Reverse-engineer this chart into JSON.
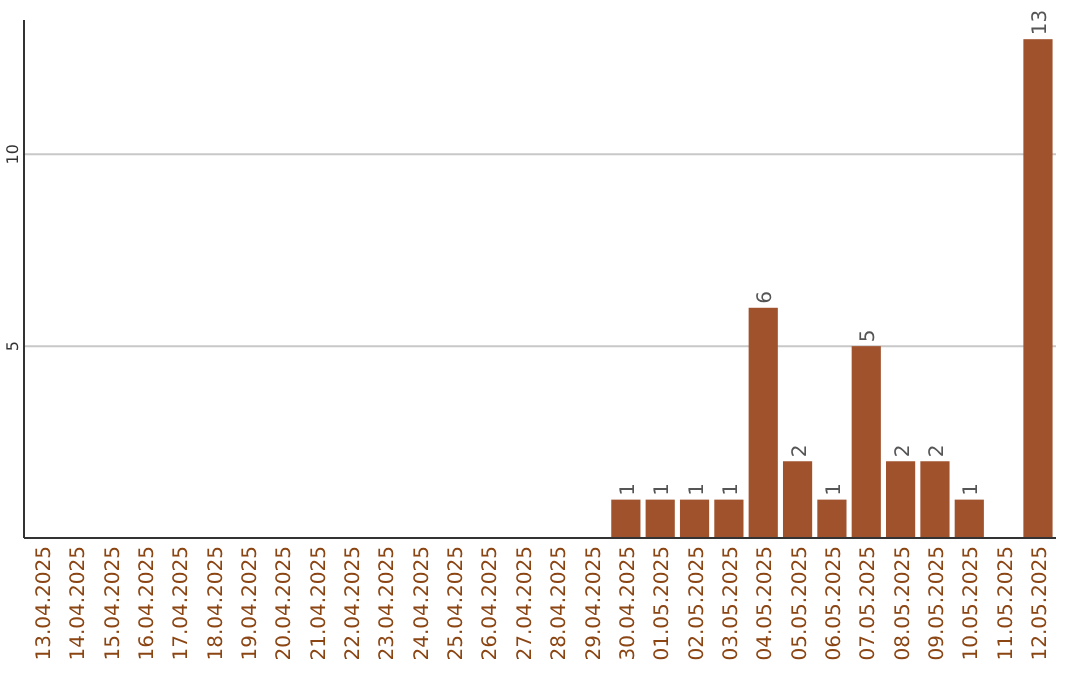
{
  "chart_data": {
    "type": "bar",
    "categories": [
      "13.04.2025",
      "14.04.2025",
      "15.04.2025",
      "16.04.2025",
      "17.04.2025",
      "18.04.2025",
      "19.04.2025",
      "20.04.2025",
      "21.04.2025",
      "22.04.2025",
      "23.04.2025",
      "24.04.2025",
      "25.04.2025",
      "26.04.2025",
      "27.04.2025",
      "28.04.2025",
      "29.04.2025",
      "30.04.2025",
      "01.05.2025",
      "02.05.2025",
      "03.05.2025",
      "04.05.2025",
      "05.05.2025",
      "06.05.2025",
      "07.05.2025",
      "08.05.2025",
      "09.05.2025",
      "10.05.2025",
      "11.05.2025",
      "12.05.2025"
    ],
    "values": [
      0,
      0,
      0,
      0,
      0,
      0,
      0,
      0,
      0,
      0,
      0,
      0,
      0,
      0,
      0,
      0,
      0,
      1,
      1,
      1,
      1,
      6,
      2,
      1,
      5,
      2,
      2,
      1,
      0,
      13
    ],
    "value_labels": [
      null,
      null,
      null,
      null,
      null,
      null,
      null,
      null,
      null,
      null,
      null,
      null,
      null,
      null,
      null,
      null,
      null,
      "1",
      "1",
      "1",
      "1",
      "6",
      "2",
      "1",
      "5",
      "2",
      "2",
      "1",
      null,
      "13"
    ],
    "color": "#a0522d",
    "ylim": [
      0,
      13.5
    ],
    "yticks": [
      5,
      10
    ],
    "grid": "y"
  }
}
